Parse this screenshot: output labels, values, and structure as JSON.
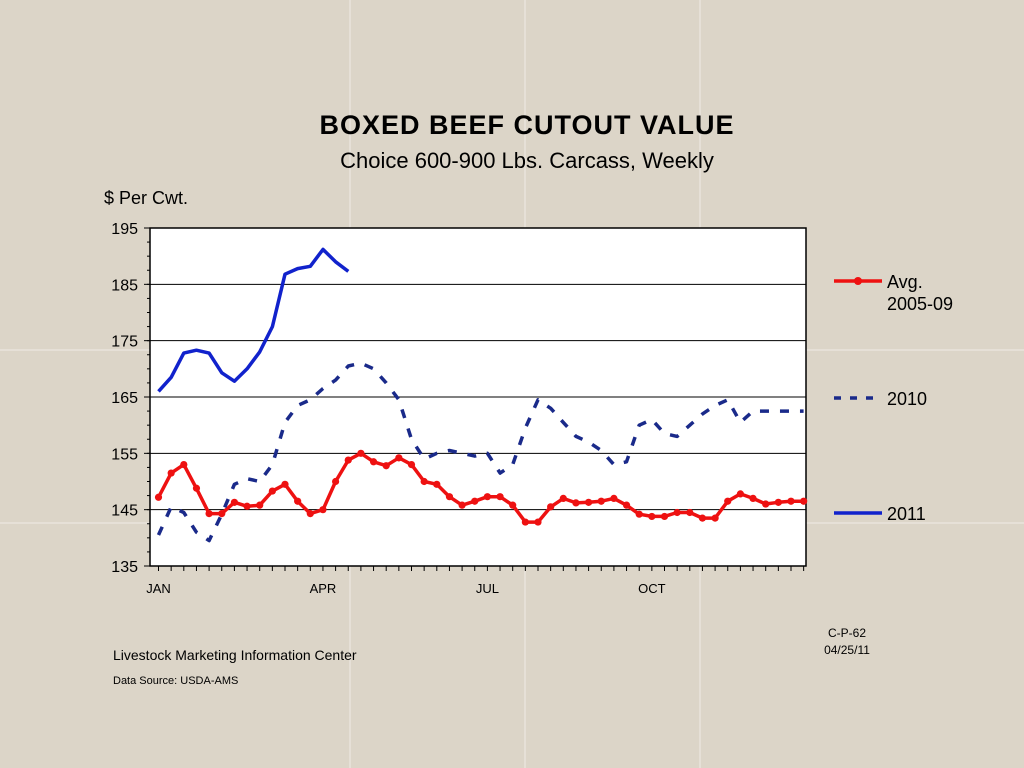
{
  "chart_data": {
    "type": "line",
    "title": "BOXED  BEEF  CUTOUT  VALUE",
    "subtitle": "Choice 600-900 Lbs. Carcass, Weekly",
    "ylabel": "$ Per Cwt.",
    "ylim": [
      135,
      195
    ],
    "yticks": [
      135,
      145,
      155,
      165,
      175,
      185,
      195
    ],
    "xlim": [
      1,
      52
    ],
    "xtick_labels": [
      {
        "week": 1,
        "label": "JAN"
      },
      {
        "week": 14,
        "label": "APR"
      },
      {
        "week": 27,
        "label": "JUL"
      },
      {
        "week": 40,
        "label": "OCT"
      }
    ],
    "grid": "horizontal",
    "legend_placement": "right",
    "series": [
      {
        "name": "Avg.\n2005-09",
        "color": "#ee1111",
        "style": "solid-markers",
        "x": [
          1,
          2,
          3,
          4,
          5,
          6,
          7,
          8,
          9,
          10,
          11,
          12,
          13,
          14,
          15,
          16,
          17,
          18,
          19,
          20,
          21,
          22,
          23,
          24,
          25,
          26,
          27,
          28,
          29,
          30,
          31,
          32,
          33,
          34,
          35,
          36,
          37,
          38,
          39,
          40,
          41,
          42,
          43,
          44,
          45,
          46,
          47,
          48,
          49,
          50,
          51,
          52
        ],
        "values": [
          147.2,
          151.5,
          153,
          148.8,
          144.3,
          144.3,
          146.3,
          145.6,
          145.8,
          148.3,
          149.5,
          146.5,
          144.3,
          145,
          150,
          153.8,
          155,
          153.5,
          152.8,
          154.2,
          153,
          150,
          149.5,
          147.3,
          145.8,
          146.5,
          147.3,
          147.3,
          145.8,
          142.8,
          142.8,
          145.5,
          147,
          146.2,
          146.3,
          146.5,
          147,
          145.8,
          144.2,
          143.8,
          143.8,
          144.5,
          144.5,
          143.5,
          143.5,
          146.5,
          147.8,
          147,
          146,
          146.3,
          146.5,
          146.5
        ]
      },
      {
        "name": "2010",
        "color": "#1a2a8a",
        "style": "dashed",
        "x": [
          1,
          2,
          3,
          4,
          5,
          6,
          7,
          8,
          9,
          10,
          11,
          12,
          13,
          14,
          15,
          16,
          17,
          18,
          19,
          20,
          21,
          22,
          23,
          24,
          25,
          26,
          27,
          28,
          29,
          30,
          31,
          32,
          33,
          34,
          35,
          36,
          37,
          38,
          39,
          40,
          41,
          42,
          43,
          44,
          45,
          46,
          47,
          48,
          49,
          50,
          51,
          52
        ],
        "values": [
          140.5,
          145.5,
          144.5,
          141,
          139.5,
          144.2,
          149.5,
          150.5,
          150,
          153,
          160.5,
          163.5,
          164.5,
          166.5,
          168,
          170.5,
          171,
          170,
          167.5,
          164.5,
          157.5,
          154,
          155,
          155.5,
          155,
          154.5,
          155,
          151.5,
          153,
          159.5,
          164.5,
          163,
          160.5,
          158,
          157,
          155.5,
          153,
          153.5,
          160,
          161,
          158.5,
          158,
          160,
          162,
          163.5,
          164.5,
          160.5,
          162.5,
          162.5,
          162.5,
          162.5,
          162.5
        ]
      },
      {
        "name": "2011",
        "color": "#1122cc",
        "style": "solid",
        "x": [
          1,
          2,
          3,
          4,
          5,
          6,
          7,
          8,
          9,
          10,
          11,
          12,
          13,
          14,
          15,
          16
        ],
        "values": [
          166,
          168.5,
          172.8,
          173.3,
          172.8,
          169.3,
          167.8,
          170,
          173,
          177.5,
          186.8,
          187.8,
          188.2,
          191.2,
          189,
          187.3
        ]
      }
    ]
  },
  "footer": {
    "center": "Livestock Marketing Information Center",
    "source": "Data Source:  USDA-AMS",
    "code": "C-P-62",
    "date": "04/25/11"
  }
}
